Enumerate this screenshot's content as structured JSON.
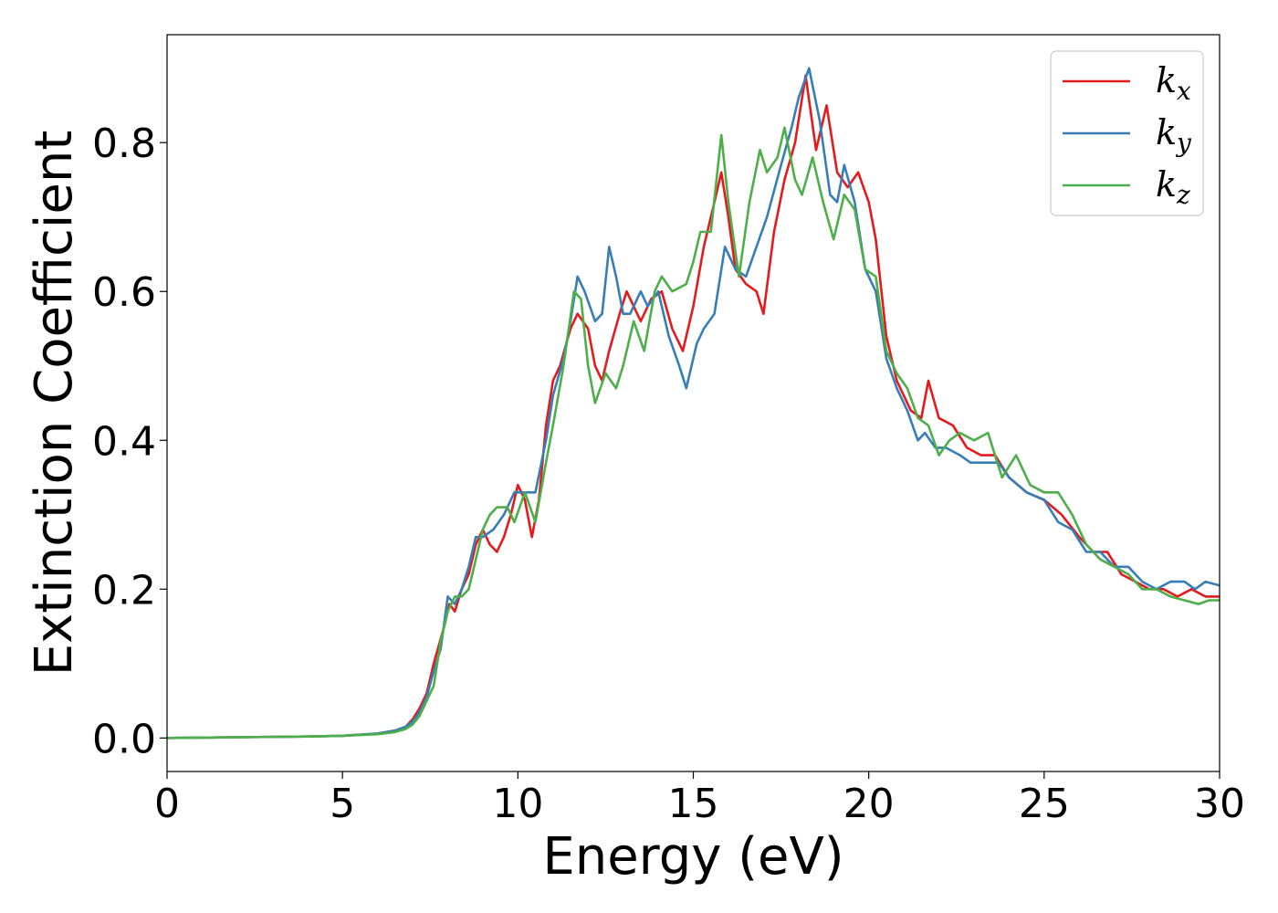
{
  "chart_data": {
    "type": "line",
    "xlabel": "Energy (eV)",
    "ylabel": "Extinction Coefficient",
    "xlim": [
      0,
      30
    ],
    "ylim": [
      -0.045,
      0.945
    ],
    "xticks": [
      0,
      5,
      10,
      15,
      20,
      25,
      30
    ],
    "yticks": [
      0.0,
      0.2,
      0.4,
      0.6,
      0.8
    ],
    "grid": false,
    "legend_position": "top-right",
    "series": [
      {
        "name": "k",
        "subscript": "x",
        "color": "#e41a1c",
        "points": [
          [
            0,
            0
          ],
          [
            2,
            0.001
          ],
          [
            4,
            0.002
          ],
          [
            5,
            0.003
          ],
          [
            6,
            0.006
          ],
          [
            6.5,
            0.01
          ],
          [
            6.8,
            0.015
          ],
          [
            7,
            0.025
          ],
          [
            7.2,
            0.04
          ],
          [
            7.4,
            0.06
          ],
          [
            7.6,
            0.1
          ],
          [
            7.75,
            0.125
          ],
          [
            7.9,
            0.15
          ],
          [
            8.05,
            0.18
          ],
          [
            8.2,
            0.17
          ],
          [
            8.4,
            0.2
          ],
          [
            8.6,
            0.22
          ],
          [
            8.8,
            0.26
          ],
          [
            9.0,
            0.28
          ],
          [
            9.2,
            0.26
          ],
          [
            9.4,
            0.25
          ],
          [
            9.6,
            0.27
          ],
          [
            9.8,
            0.3
          ],
          [
            10.0,
            0.34
          ],
          [
            10.2,
            0.32
          ],
          [
            10.4,
            0.27
          ],
          [
            10.6,
            0.32
          ],
          [
            10.8,
            0.42
          ],
          [
            11.0,
            0.48
          ],
          [
            11.2,
            0.5
          ],
          [
            11.5,
            0.55
          ],
          [
            11.7,
            0.57
          ],
          [
            12.0,
            0.55
          ],
          [
            12.2,
            0.5
          ],
          [
            12.4,
            0.48
          ],
          [
            12.6,
            0.52
          ],
          [
            12.9,
            0.57
          ],
          [
            13.1,
            0.6
          ],
          [
            13.3,
            0.58
          ],
          [
            13.5,
            0.56
          ],
          [
            13.8,
            0.59
          ],
          [
            14.1,
            0.6
          ],
          [
            14.4,
            0.55
          ],
          [
            14.7,
            0.52
          ],
          [
            15.0,
            0.58
          ],
          [
            15.3,
            0.66
          ],
          [
            15.6,
            0.72
          ],
          [
            15.8,
            0.76
          ],
          [
            16.0,
            0.7
          ],
          [
            16.2,
            0.63
          ],
          [
            16.5,
            0.61
          ],
          [
            16.8,
            0.6
          ],
          [
            17.0,
            0.57
          ],
          [
            17.3,
            0.68
          ],
          [
            17.6,
            0.75
          ],
          [
            17.9,
            0.8
          ],
          [
            18.2,
            0.89
          ],
          [
            18.5,
            0.79
          ],
          [
            18.8,
            0.85
          ],
          [
            19.1,
            0.76
          ],
          [
            19.4,
            0.74
          ],
          [
            19.7,
            0.76
          ],
          [
            20.0,
            0.72
          ],
          [
            20.2,
            0.67
          ],
          [
            20.5,
            0.54
          ],
          [
            20.8,
            0.48
          ],
          [
            21.2,
            0.44
          ],
          [
            21.5,
            0.43
          ],
          [
            21.7,
            0.48
          ],
          [
            22.0,
            0.43
          ],
          [
            22.4,
            0.42
          ],
          [
            22.8,
            0.39
          ],
          [
            23.2,
            0.38
          ],
          [
            23.6,
            0.38
          ],
          [
            24.0,
            0.35
          ],
          [
            24.5,
            0.33
          ],
          [
            25.0,
            0.32
          ],
          [
            25.5,
            0.3
          ],
          [
            26.0,
            0.27
          ],
          [
            26.4,
            0.25
          ],
          [
            26.8,
            0.25
          ],
          [
            27.2,
            0.22
          ],
          [
            27.6,
            0.21
          ],
          [
            28.0,
            0.2
          ],
          [
            28.4,
            0.2
          ],
          [
            28.8,
            0.19
          ],
          [
            29.2,
            0.2
          ],
          [
            29.6,
            0.19
          ],
          [
            30.0,
            0.19
          ]
        ]
      },
      {
        "name": "k",
        "subscript": "y",
        "color": "#377eb8",
        "points": [
          [
            0,
            0
          ],
          [
            2,
            0.001
          ],
          [
            4,
            0.002
          ],
          [
            5,
            0.003
          ],
          [
            6,
            0.006
          ],
          [
            6.5,
            0.01
          ],
          [
            6.8,
            0.015
          ],
          [
            7,
            0.022
          ],
          [
            7.2,
            0.035
          ],
          [
            7.4,
            0.055
          ],
          [
            7.6,
            0.09
          ],
          [
            7.8,
            0.12
          ],
          [
            8.0,
            0.19
          ],
          [
            8.2,
            0.18
          ],
          [
            8.4,
            0.2
          ],
          [
            8.6,
            0.23
          ],
          [
            8.8,
            0.27
          ],
          [
            9.0,
            0.27
          ],
          [
            9.3,
            0.28
          ],
          [
            9.6,
            0.3
          ],
          [
            9.9,
            0.33
          ],
          [
            10.2,
            0.33
          ],
          [
            10.5,
            0.33
          ],
          [
            10.8,
            0.4
          ],
          [
            11.0,
            0.46
          ],
          [
            11.3,
            0.51
          ],
          [
            11.5,
            0.56
          ],
          [
            11.7,
            0.62
          ],
          [
            11.9,
            0.6
          ],
          [
            12.2,
            0.56
          ],
          [
            12.4,
            0.57
          ],
          [
            12.6,
            0.66
          ],
          [
            12.8,
            0.62
          ],
          [
            13.0,
            0.57
          ],
          [
            13.2,
            0.57
          ],
          [
            13.5,
            0.6
          ],
          [
            13.7,
            0.58
          ],
          [
            14.0,
            0.6
          ],
          [
            14.3,
            0.54
          ],
          [
            14.6,
            0.5
          ],
          [
            14.8,
            0.47
          ],
          [
            15.1,
            0.53
          ],
          [
            15.3,
            0.55
          ],
          [
            15.6,
            0.57
          ],
          [
            15.9,
            0.66
          ],
          [
            16.2,
            0.63
          ],
          [
            16.5,
            0.62
          ],
          [
            16.8,
            0.66
          ],
          [
            17.1,
            0.7
          ],
          [
            17.5,
            0.77
          ],
          [
            17.8,
            0.82
          ],
          [
            18.0,
            0.86
          ],
          [
            18.3,
            0.9
          ],
          [
            18.6,
            0.83
          ],
          [
            18.9,
            0.73
          ],
          [
            19.1,
            0.72
          ],
          [
            19.3,
            0.77
          ],
          [
            19.6,
            0.72
          ],
          [
            19.9,
            0.63
          ],
          [
            20.2,
            0.6
          ],
          [
            20.5,
            0.51
          ],
          [
            20.8,
            0.47
          ],
          [
            21.1,
            0.44
          ],
          [
            21.4,
            0.4
          ],
          [
            21.6,
            0.41
          ],
          [
            21.9,
            0.39
          ],
          [
            22.2,
            0.39
          ],
          [
            22.6,
            0.38
          ],
          [
            22.9,
            0.37
          ],
          [
            23.3,
            0.37
          ],
          [
            23.7,
            0.37
          ],
          [
            24.0,
            0.35
          ],
          [
            24.5,
            0.33
          ],
          [
            25.0,
            0.32
          ],
          [
            25.4,
            0.29
          ],
          [
            25.8,
            0.28
          ],
          [
            26.2,
            0.25
          ],
          [
            26.6,
            0.25
          ],
          [
            27.0,
            0.23
          ],
          [
            27.4,
            0.23
          ],
          [
            27.8,
            0.21
          ],
          [
            28.2,
            0.2
          ],
          [
            28.6,
            0.21
          ],
          [
            29.0,
            0.21
          ],
          [
            29.3,
            0.2
          ],
          [
            29.6,
            0.21
          ],
          [
            30.0,
            0.205
          ]
        ]
      },
      {
        "name": "k",
        "subscript": "z",
        "color": "#4daf4a",
        "points": [
          [
            0,
            0
          ],
          [
            2,
            0.001
          ],
          [
            4,
            0.002
          ],
          [
            5,
            0.003
          ],
          [
            6,
            0.005
          ],
          [
            6.5,
            0.008
          ],
          [
            6.8,
            0.012
          ],
          [
            7,
            0.018
          ],
          [
            7.2,
            0.03
          ],
          [
            7.4,
            0.05
          ],
          [
            7.6,
            0.07
          ],
          [
            7.8,
            0.13
          ],
          [
            8.0,
            0.17
          ],
          [
            8.2,
            0.19
          ],
          [
            8.4,
            0.19
          ],
          [
            8.6,
            0.2
          ],
          [
            8.8,
            0.24
          ],
          [
            9.0,
            0.28
          ],
          [
            9.2,
            0.3
          ],
          [
            9.4,
            0.31
          ],
          [
            9.7,
            0.31
          ],
          [
            9.9,
            0.29
          ],
          [
            10.2,
            0.33
          ],
          [
            10.5,
            0.29
          ],
          [
            10.8,
            0.37
          ],
          [
            11.0,
            0.42
          ],
          [
            11.3,
            0.5
          ],
          [
            11.6,
            0.6
          ],
          [
            11.8,
            0.59
          ],
          [
            12.0,
            0.5
          ],
          [
            12.2,
            0.45
          ],
          [
            12.5,
            0.49
          ],
          [
            12.8,
            0.47
          ],
          [
            13.0,
            0.5
          ],
          [
            13.3,
            0.56
          ],
          [
            13.6,
            0.52
          ],
          [
            13.9,
            0.6
          ],
          [
            14.1,
            0.62
          ],
          [
            14.4,
            0.6
          ],
          [
            14.8,
            0.61
          ],
          [
            15.0,
            0.64
          ],
          [
            15.2,
            0.68
          ],
          [
            15.5,
            0.68
          ],
          [
            15.8,
            0.81
          ],
          [
            16.0,
            0.72
          ],
          [
            16.3,
            0.62
          ],
          [
            16.6,
            0.72
          ],
          [
            16.9,
            0.79
          ],
          [
            17.1,
            0.76
          ],
          [
            17.4,
            0.78
          ],
          [
            17.6,
            0.82
          ],
          [
            17.9,
            0.75
          ],
          [
            18.1,
            0.73
          ],
          [
            18.4,
            0.78
          ],
          [
            18.7,
            0.72
          ],
          [
            19.0,
            0.67
          ],
          [
            19.3,
            0.73
          ],
          [
            19.6,
            0.71
          ],
          [
            19.9,
            0.63
          ],
          [
            20.2,
            0.62
          ],
          [
            20.5,
            0.52
          ],
          [
            20.8,
            0.49
          ],
          [
            21.1,
            0.47
          ],
          [
            21.4,
            0.43
          ],
          [
            21.7,
            0.42
          ],
          [
            22.0,
            0.38
          ],
          [
            22.3,
            0.4
          ],
          [
            22.6,
            0.41
          ],
          [
            23.0,
            0.4
          ],
          [
            23.4,
            0.41
          ],
          [
            23.8,
            0.35
          ],
          [
            24.2,
            0.38
          ],
          [
            24.6,
            0.34
          ],
          [
            25.0,
            0.33
          ],
          [
            25.4,
            0.33
          ],
          [
            25.8,
            0.3
          ],
          [
            26.2,
            0.26
          ],
          [
            26.6,
            0.24
          ],
          [
            27.0,
            0.23
          ],
          [
            27.4,
            0.22
          ],
          [
            27.8,
            0.2
          ],
          [
            28.2,
            0.2
          ],
          [
            28.6,
            0.19
          ],
          [
            29.0,
            0.185
          ],
          [
            29.4,
            0.18
          ],
          [
            29.7,
            0.185
          ],
          [
            30.0,
            0.185
          ]
        ]
      }
    ]
  }
}
